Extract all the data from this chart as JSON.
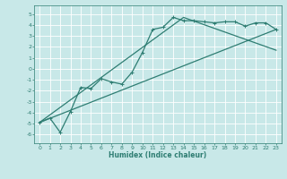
{
  "xlabel": "Humidex (Indice chaleur)",
  "bg_color": "#c8e8e8",
  "grid_color": "#ffffff",
  "line_color": "#2e7d72",
  "xlim": [
    -0.5,
    23.5
  ],
  "ylim": [
    -6.8,
    5.8
  ],
  "xticks": [
    0,
    1,
    2,
    3,
    4,
    5,
    6,
    7,
    8,
    9,
    10,
    11,
    12,
    13,
    14,
    15,
    16,
    17,
    18,
    19,
    20,
    21,
    22,
    23
  ],
  "yticks": [
    -6,
    -5,
    -4,
    -3,
    -2,
    -1,
    0,
    1,
    2,
    3,
    4,
    5
  ],
  "line1_x": [
    0,
    1,
    2,
    3,
    4,
    5,
    6,
    7,
    8,
    9,
    10,
    11,
    12,
    13,
    14,
    15,
    16,
    17,
    18,
    19,
    20,
    21,
    22,
    23
  ],
  "line1_y": [
    -4.9,
    -4.5,
    -5.8,
    -3.9,
    -1.7,
    -1.8,
    -0.9,
    -1.2,
    -1.4,
    -0.3,
    1.5,
    3.6,
    3.8,
    4.7,
    4.4,
    4.4,
    4.3,
    4.2,
    4.3,
    4.3,
    3.9,
    4.2,
    4.2,
    3.6
  ],
  "line2_x": [
    0,
    23
  ],
  "line2_y": [
    -4.9,
    3.6
  ],
  "line3_x": [
    0,
    14,
    23
  ],
  "line3_y": [
    -4.9,
    4.7,
    1.7
  ],
  "marker_size": 2.5,
  "line_width": 0.9,
  "tick_fontsize": 4.5,
  "xlabel_fontsize": 5.5
}
